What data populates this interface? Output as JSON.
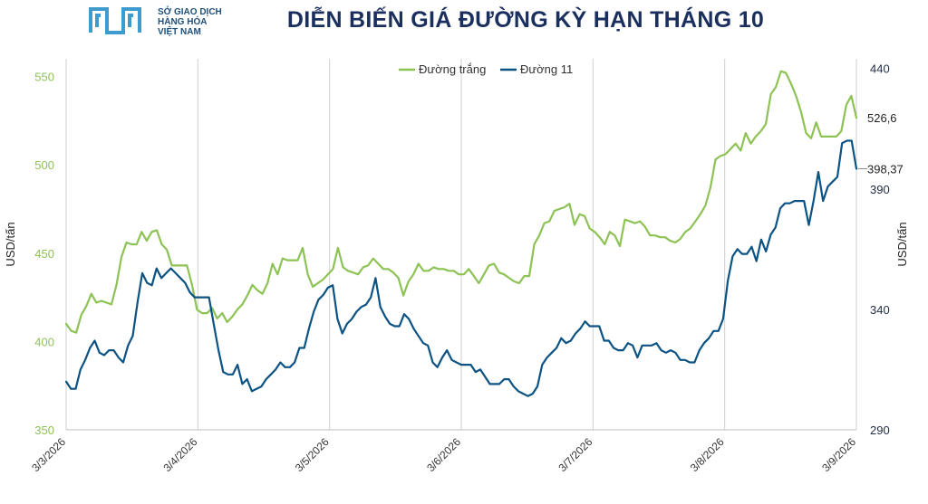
{
  "header": {
    "logo_lines": [
      "SỞ GIAO DỊCH",
      "HÀNG HÓA",
      "VIỆT NAM"
    ],
    "title": "DIỄN BIẾN GIÁ ĐƯỜNG KỲ HẠN THÁNG 10"
  },
  "chart_data": {
    "type": "line",
    "title": "DIỄN BIẾN GIÁ ĐƯỜNG KỲ HẠN THÁNG 10",
    "x_tick_labels": [
      "3/3/2026",
      "3/4/2026",
      "3/5/2026",
      "3/6/2026",
      "3/7/2026",
      "3/8/2026",
      "3/9/2026"
    ],
    "left_axis": {
      "label": "USD/tấn",
      "range": [
        350,
        560
      ],
      "ticks": [
        350,
        400,
        450,
        500,
        550
      ],
      "color": "#8dc255"
    },
    "right_axis": {
      "label": "USD/tấn",
      "range": [
        290,
        444
      ],
      "ticks": [
        290,
        340,
        390,
        440
      ],
      "color": "#1f2a44"
    },
    "grid": "vertical lines at month ticks",
    "legend_position": "top-center",
    "series": [
      {
        "name": "Đường trắng",
        "axis": "left",
        "color": "#8dc255",
        "last_label": "526,6",
        "values": [
          410,
          406,
          405,
          415,
          420,
          427,
          422,
          423,
          422,
          421,
          432,
          448,
          456,
          455,
          455,
          462,
          457,
          462,
          463,
          455,
          452,
          443,
          443,
          443,
          443,
          432,
          418,
          416,
          416,
          419,
          413,
          416,
          411,
          414,
          418,
          421,
          426,
          432,
          429,
          427,
          433,
          444,
          438,
          447,
          446,
          446,
          446,
          453,
          438,
          431,
          433,
          435,
          438,
          441,
          453,
          442,
          440,
          439,
          438,
          442,
          443,
          447,
          444,
          441,
          441,
          439,
          436,
          426,
          434,
          438,
          444,
          440,
          440,
          442,
          441,
          441,
          440,
          440,
          438,
          438,
          441,
          437,
          433,
          438,
          443,
          444,
          439,
          438,
          436,
          434,
          433,
          437,
          437,
          455,
          460,
          467,
          468,
          474,
          475,
          476,
          478,
          466,
          472,
          471,
          464,
          462,
          459,
          455,
          462,
          460,
          454,
          469,
          468,
          467,
          468,
          465,
          460,
          460,
          459,
          459,
          457,
          456,
          458,
          462,
          464,
          468,
          472,
          477,
          487,
          503,
          505,
          506,
          509,
          512,
          508,
          518,
          512,
          516,
          519,
          523,
          540,
          544,
          553,
          552,
          546,
          539,
          530,
          518,
          515,
          524,
          516,
          516,
          516,
          516,
          519,
          534,
          539,
          526.6
        ]
      },
      {
        "name": "Đường 11",
        "axis": "right",
        "color": "#0c5383",
        "last_label": "398,37",
        "values": [
          310,
          307,
          307,
          315,
          319,
          324,
          327,
          322,
          321,
          323,
          323,
          320,
          318,
          325,
          329,
          343,
          355,
          351,
          350,
          357,
          353,
          355,
          357,
          355,
          353,
          351,
          347,
          345,
          345,
          345,
          345,
          334,
          323,
          314,
          313,
          313,
          317,
          309,
          311,
          306,
          307,
          308,
          311,
          313,
          315,
          318,
          316,
          316,
          318,
          324,
          324,
          332,
          339,
          344,
          346,
          349,
          350,
          336,
          330,
          334,
          336,
          339,
          341,
          342,
          345,
          353,
          341,
          337,
          334,
          333,
          333,
          338,
          336,
          332,
          329,
          326,
          325,
          318,
          316,
          320,
          323,
          319,
          318,
          317,
          317,
          317,
          314,
          315,
          312,
          309,
          309,
          309,
          311,
          311,
          308,
          306,
          305,
          304,
          305,
          308,
          317,
          320,
          322,
          324,
          328,
          326,
          327,
          330,
          332,
          335,
          333,
          333,
          333,
          327,
          327,
          324,
          323,
          323,
          326,
          325,
          320,
          325,
          325,
          325,
          326,
          323,
          322,
          323,
          322,
          319,
          319,
          318,
          318,
          323,
          326,
          328,
          331,
          331,
          336,
          352,
          362,
          365,
          363,
          363,
          366,
          360,
          369,
          364,
          371,
          374,
          382,
          384,
          384,
          385,
          385,
          385,
          375,
          385,
          397,
          385,
          391,
          393,
          395,
          409,
          410,
          410,
          398.37
        ]
      }
    ]
  }
}
